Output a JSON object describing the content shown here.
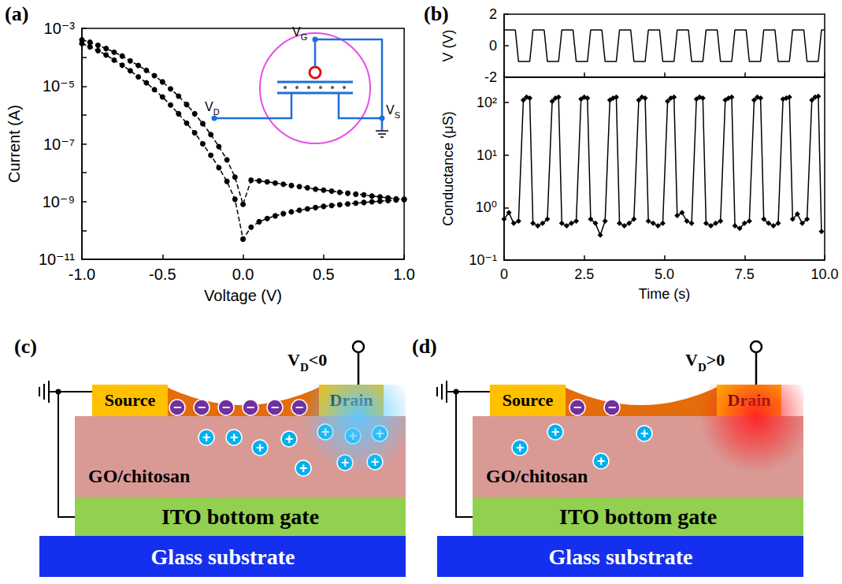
{
  "chart_data": [
    {
      "panel": "(a)",
      "type": "line",
      "x_label": "Voltage (V)",
      "y_label": "Current (A)",
      "x": [
        -1,
        -0.95,
        -0.9,
        -0.85,
        -0.8,
        -0.75,
        -0.7,
        -0.65,
        -0.6,
        -0.55,
        -0.5,
        -0.45,
        -0.4,
        -0.35,
        -0.3,
        -0.25,
        -0.2,
        -0.15,
        -0.1,
        -0.05,
        0,
        0.05,
        0.1,
        0.15,
        0.2,
        0.25,
        0.3,
        0.35,
        0.4,
        0.45,
        0.5,
        0.55,
        0.6,
        0.65,
        0.7,
        0.75,
        0.8,
        0.85,
        0.9,
        0.95,
        1
      ],
      "series": [
        {
          "color": "#000000",
          "marker": "circle",
          "line_style": "dashed",
          "values": [
            0.0004,
            0.00033,
            0.00026,
            0.0002,
            0.00015,
            0.00011,
            7.5e-05,
            5.2e-05,
            3.5e-05,
            2.3e-05,
            1.4e-05,
            8e-06,
            4.5e-06,
            2.3e-06,
            1.1e-06,
            5e-07,
            2.1e-07,
            8e-08,
            2.8e-08,
            7e-09,
            8e-10,
            5.5e-09,
            5.2e-09,
            4.8e-09,
            4.4e-09,
            4e-09,
            3.6e-09,
            3.3e-09,
            3e-09,
            2.7e-09,
            2.5e-09,
            2.3e-09,
            2.1e-09,
            1.95e-09,
            1.8e-09,
            1.7e-09,
            1.55e-09,
            1.45e-09,
            1.35e-09,
            1.25e-09,
            1.2e-09
          ]
        },
        {
          "color": "#000000",
          "marker": "circle",
          "line_style": "dashed",
          "values": [
            0.0003,
            0.00023,
            0.00017,
            0.00012,
            8e-05,
            5.3e-05,
            3.4e-05,
            2.1e-05,
            1.3e-05,
            7.5e-06,
            4.2e-06,
            2.2e-06,
            1.1e-06,
            5.2e-07,
            2.4e-07,
            1e-07,
            4e-08,
            1.5e-08,
            5e-09,
            1.2e-09,
            5e-11,
            1.3e-10,
            2e-10,
            2.6e-10,
            3.2e-10,
            3.8e-10,
            4.4e-10,
            5e-10,
            5.6e-10,
            6.2e-10,
            6.8e-10,
            7.3e-10,
            7.8e-10,
            8.3e-10,
            8.8e-10,
            9.3e-10,
            9.8e-10,
            1.03e-09,
            1.08e-09,
            1.13e-09,
            1.18e-09
          ]
        }
      ],
      "xlim": [
        -1,
        1
      ],
      "xticks": [
        {
          "value": -1,
          "label": "-1.0"
        },
        {
          "value": -0.5,
          "label": "-0.5"
        },
        {
          "value": 0,
          "label": "0.0"
        },
        {
          "value": 0.5,
          "label": "0.5"
        },
        {
          "value": 1,
          "label": "1.0"
        }
      ],
      "ylim": [
        1e-11,
        0.001
      ],
      "yticks": [
        {
          "value": 1e-11,
          "label": "10⁻¹¹"
        },
        {
          "value": 1e-09,
          "label": "10⁻⁹"
        },
        {
          "value": 1e-07,
          "label": "10⁻⁷"
        },
        {
          "value": 1e-05,
          "label": "10⁻⁵"
        },
        {
          "value": 0.001,
          "label": "10⁻³"
        }
      ],
      "log": "y",
      "grid": false,
      "annotations": [
        {
          "text": "V",
          "sub": "G"
        },
        {
          "text": "V",
          "sub": "D"
        },
        {
          "text": "V",
          "sub": "S"
        }
      ]
    },
    {
      "panel": "(b)",
      "type": "line",
      "y_label": "V (V)",
      "x": [
        0,
        0.35,
        0.45,
        0.8,
        0.9,
        1.25,
        1.35,
        1.7,
        1.8,
        2.15,
        2.25,
        2.6,
        2.7,
        3.05,
        3.15,
        3.5,
        3.6,
        3.95,
        4.05,
        4.4,
        4.5,
        4.85,
        4.95,
        5.3,
        5.4,
        5.75,
        5.85,
        6.2,
        6.3,
        6.65,
        6.75,
        7.1,
        7.2,
        7.55,
        7.65,
        8,
        8.1,
        8.45,
        8.55,
        8.9,
        9,
        9.35,
        9.45,
        9.8,
        9.9,
        10
      ],
      "series": [
        {
          "color": "#000000",
          "marker": "none",
          "line_style": "solid",
          "values": [
            1,
            1,
            -1,
            -1,
            1,
            1,
            -1,
            -1,
            1,
            1,
            -1,
            -1,
            1,
            1,
            -1,
            -1,
            1,
            1,
            -1,
            -1,
            1,
            1,
            -1,
            -1,
            1,
            1,
            -1,
            -1,
            1,
            1,
            -1,
            -1,
            1,
            1,
            -1,
            -1,
            1,
            1,
            -1,
            -1,
            1,
            1,
            -1,
            -1,
            1,
            1
          ]
        }
      ],
      "xlim": [
        0,
        10
      ],
      "xticks": [
        0,
        2.5,
        {
          "value": 5,
          "label": "5.0"
        },
        7.5,
        {
          "value": 10,
          "label": "10.0"
        }
      ],
      "ylim": [
        -2,
        2
      ],
      "yticks": [
        -2,
        0,
        2
      ],
      "grid": false,
      "tick_labels": "y"
    },
    {
      "type": "line",
      "x_label": "Time (s)",
      "y_label": "Conductance (μS)",
      "x": [
        0,
        0.15,
        0.3,
        0.45,
        0.6,
        0.7,
        0.8,
        0.9,
        1.05,
        1.2,
        1.35,
        1.5,
        1.6,
        1.7,
        1.8,
        1.95,
        2.1,
        2.25,
        2.4,
        2.5,
        2.6,
        2.7,
        2.85,
        3,
        3.15,
        3.3,
        3.4,
        3.5,
        3.6,
        3.75,
        3.9,
        4.05,
        4.2,
        4.3,
        4.4,
        4.5,
        4.65,
        4.8,
        4.95,
        5.1,
        5.2,
        5.3,
        5.4,
        5.55,
        5.7,
        5.85,
        6,
        6.1,
        6.2,
        6.3,
        6.45,
        6.6,
        6.75,
        6.9,
        7,
        7.1,
        7.2,
        7.35,
        7.5,
        7.65,
        7.8,
        7.9,
        8,
        8.1,
        8.25,
        8.4,
        8.55,
        8.7,
        8.8,
        8.9,
        9,
        9.15,
        9.3,
        9.45,
        9.6,
        9.7,
        9.8,
        9.9
      ],
      "series": [
        {
          "color": "#000000",
          "marker": "diamond",
          "line_style": "solid",
          "values": [
            0.6,
            0.8,
            0.5,
            0.55,
            110,
            125,
            120,
            0.5,
            0.45,
            0.5,
            0.6,
            105,
            120,
            125,
            0.5,
            0.45,
            0.5,
            0.55,
            115,
            125,
            120,
            0.6,
            0.5,
            0.3,
            0.55,
            110,
            120,
            125,
            0.5,
            0.45,
            0.5,
            0.6,
            110,
            125,
            120,
            0.55,
            0.5,
            0.45,
            0.5,
            105,
            120,
            125,
            0.7,
            0.8,
            0.55,
            0.5,
            115,
            125,
            120,
            0.5,
            0.45,
            0.5,
            0.55,
            110,
            120,
            125,
            0.45,
            0.4,
            0.5,
            0.55,
            110,
            125,
            120,
            0.6,
            0.5,
            0.45,
            0.5,
            115,
            120,
            125,
            0.6,
            0.75,
            0.5,
            0.6,
            110,
            125,
            130,
            0.35
          ]
        }
      ],
      "xlim": [
        0,
        10
      ],
      "xticks": [
        0,
        2.5,
        {
          "value": 5,
          "label": "5.0"
        },
        7.5,
        {
          "value": 10,
          "label": "10.0"
        }
      ],
      "ylim": [
        0.1,
        300
      ],
      "yticks": [
        {
          "value": 0.1,
          "label": "10⁻¹"
        },
        {
          "value": 1,
          "label": "10⁰"
        },
        {
          "value": 10,
          "label": "10¹"
        },
        {
          "value": 100,
          "label": "10²"
        }
      ],
      "log": "y",
      "grid": false
    }
  ],
  "diagrams": [
    {
      "panel": "(c)",
      "terminal": {
        "text": "V",
        "sub": "D",
        "tail": "<0"
      },
      "electrodes": [
        "Source",
        "Drain"
      ],
      "layers": [
        "GO/chitosan",
        "ITO bottom gate",
        "Glass substrate"
      ],
      "carriers": [
        {
          "sign": "−",
          "count": 6
        },
        {
          "sign": "+",
          "count": 10
        }
      ],
      "color": "#5cc8ff"
    },
    {
      "panel": "(d)",
      "terminal": {
        "text": "V",
        "sub": "D",
        "tail": ">0"
      },
      "electrodes": [
        "Source",
        "Drain"
      ],
      "layers": [
        "GO/chitosan",
        "ITO bottom gate",
        "Glass substrate"
      ],
      "carriers": [
        {
          "sign": "−",
          "count": 2
        },
        {
          "sign": "+",
          "count": 4
        }
      ],
      "color": "#ff2020"
    }
  ]
}
